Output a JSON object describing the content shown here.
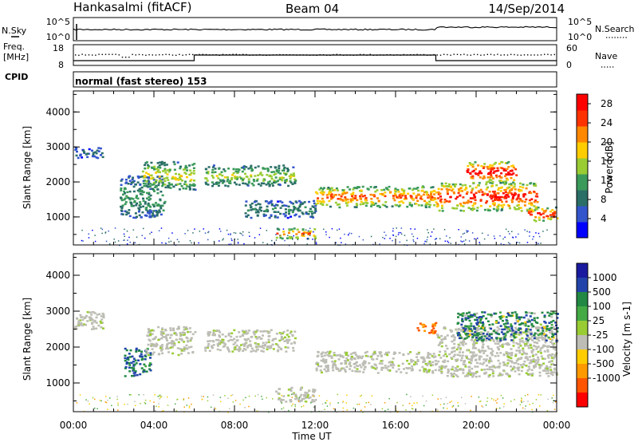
{
  "header": {
    "station": "Hankasalmi (fitACF)",
    "beam": "Beam 04",
    "date": "14/Sep/2014"
  },
  "noise_panel": {
    "left_label": "N.Sky",
    "right_label": "N.Search",
    "left_ticks": [
      "10^5",
      "10^0"
    ],
    "right_ticks": [
      "10^5",
      "10^0"
    ]
  },
  "freq_panel": {
    "left_label_line1": "Freq.",
    "left_label_line2": "[MHz]",
    "right_label": "Nave",
    "left_ticks": [
      "18",
      "8"
    ],
    "right_ticks": [
      "60",
      "0"
    ]
  },
  "cpid": {
    "label": "CPID",
    "mode": "normal (fast stereo) 153"
  },
  "colors": {
    "power_scale": [
      "#0000ff",
      "#3355cc",
      "#2a6e68",
      "#3a9a5a",
      "#99cc33",
      "#ffcc00",
      "#ff8800",
      "#ff3300",
      "#ff0000"
    ],
    "velocity_scale": [
      "#1a1aa0",
      "#2244aa",
      "#228844",
      "#44aa44",
      "#99cc33",
      "#bdbdb5",
      "#ffcc00",
      "#ff9900",
      "#ff5500",
      "#ff0000"
    ],
    "ground_scatter": "#bdbdb5"
  },
  "chart_data": [
    {
      "type": "heatmap",
      "title": "",
      "xlabel": "Time UT",
      "ylabel": "Slant Range [km]",
      "x_ticks": [
        "00:00",
        "04:00",
        "08:00",
        "12:00",
        "16:00",
        "20:00",
        "00:00"
      ],
      "y_ticks": [
        "1000",
        "2000",
        "3000",
        "4000"
      ],
      "xlim_hours": [
        0,
        24
      ],
      "ylim_km": [
        200,
        4600
      ],
      "colorbar": {
        "label": "Power [dB]",
        "ticks": [
          "4",
          "8",
          "12",
          "16",
          "20",
          "24",
          "28"
        ],
        "range": [
          0,
          30
        ]
      },
      "echo_bands": [
        {
          "t_start": 0.0,
          "t_end": 1.5,
          "range_km": [
            2700,
            3000
          ],
          "power_db": 6
        },
        {
          "t_start": 2.3,
          "t_end": 4.5,
          "range_km": [
            1000,
            2200
          ],
          "power_db": 10
        },
        {
          "t_start": 3.4,
          "t_end": 6.0,
          "range_km": [
            1800,
            2600
          ],
          "power_db": 16
        },
        {
          "t_start": 6.5,
          "t_end": 11.0,
          "range_km": [
            1900,
            2500
          ],
          "power_db": 14
        },
        {
          "t_start": 8.5,
          "t_end": 12.0,
          "range_km": [
            1000,
            1500
          ],
          "power_db": 8
        },
        {
          "t_start": 10.0,
          "t_end": 12.0,
          "range_km": [
            400,
            700
          ],
          "power_db": 22
        },
        {
          "t_start": 12.0,
          "t_end": 18.0,
          "range_km": [
            1300,
            1900
          ],
          "power_db": 22
        },
        {
          "t_start": 18.0,
          "t_end": 23.0,
          "range_km": [
            1200,
            2000
          ],
          "power_db": 26
        },
        {
          "t_start": 19.5,
          "t_end": 22.0,
          "range_km": [
            2000,
            2600
          ],
          "power_db": 28
        },
        {
          "t_start": 22.5,
          "t_end": 24.0,
          "range_km": [
            900,
            1300
          ],
          "power_db": 26
        }
      ]
    },
    {
      "type": "heatmap",
      "title": "",
      "xlabel": "Time UT",
      "ylabel": "Slant Range [km]",
      "x_ticks": [
        "00:00",
        "04:00",
        "08:00",
        "12:00",
        "16:00",
        "20:00",
        "00:00"
      ],
      "y_ticks": [
        "1000",
        "2000",
        "3000",
        "4000"
      ],
      "xlim_hours": [
        0,
        24
      ],
      "ylim_km": [
        200,
        4600
      ],
      "colorbar": {
        "label": "Velocity [m s-1]",
        "ticks": [
          "1000",
          "500",
          "100",
          "25",
          "-25",
          "-100",
          "-500",
          "-1000"
        ]
      },
      "echo_bands": [
        {
          "t_start": 0.0,
          "t_end": 1.5,
          "range_km": [
            2500,
            3000
          ],
          "velocity_ms": 0
        },
        {
          "t_start": 2.5,
          "t_end": 3.8,
          "range_km": [
            1200,
            2000
          ],
          "velocity_ms": 300
        },
        {
          "t_start": 3.5,
          "t_end": 6.0,
          "range_km": [
            1800,
            2600
          ],
          "velocity_ms": 0
        },
        {
          "t_start": 6.5,
          "t_end": 11.0,
          "range_km": [
            1900,
            2500
          ],
          "velocity_ms": 0
        },
        {
          "t_start": 10.0,
          "t_end": 12.0,
          "range_km": [
            500,
            900
          ],
          "velocity_ms": 0
        },
        {
          "t_start": 12.0,
          "t_end": 18.0,
          "range_km": [
            1300,
            1900
          ],
          "velocity_ms": 0
        },
        {
          "t_start": 18.0,
          "t_end": 24.0,
          "range_km": [
            1200,
            2600
          ],
          "velocity_ms": 0
        },
        {
          "t_start": 19.0,
          "t_end": 24.0,
          "range_km": [
            2200,
            3000
          ],
          "velocity_ms": 200
        },
        {
          "t_start": 17.0,
          "t_end": 18.0,
          "range_km": [
            2400,
            2700
          ],
          "velocity_ms": -300
        }
      ]
    }
  ]
}
